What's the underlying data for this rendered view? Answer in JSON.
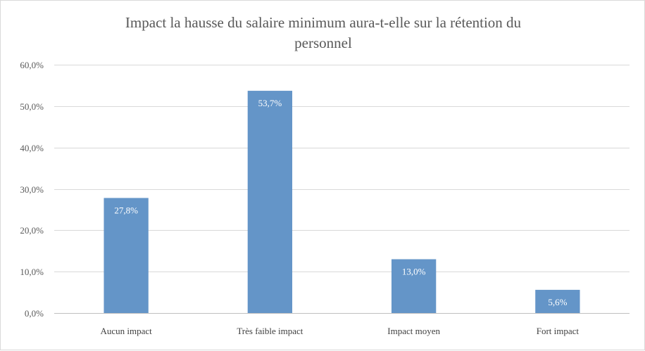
{
  "chart_data": {
    "type": "bar",
    "title_lines": [
      "Impact la hausse du salaire minimum aura-t-elle sur la rétention du",
      "personnel"
    ],
    "categories": [
      "Aucun impact",
      "Très faible impact",
      "Impact moyen",
      "Fort impact"
    ],
    "values": [
      27.8,
      53.7,
      13.0,
      5.6
    ],
    "value_labels": [
      "27,8%",
      "53,7%",
      "13,0%",
      "5,6%"
    ],
    "yticks": [
      0,
      10,
      20,
      30,
      40,
      50,
      60
    ],
    "ytick_labels": [
      "0,0%",
      "10,0%",
      "20,0%",
      "30,0%",
      "40,0%",
      "50,0%",
      "60,0%"
    ],
    "ylim": [
      0,
      60
    ],
    "grid": true,
    "legend": "none",
    "bar_color": "#6495c8"
  }
}
